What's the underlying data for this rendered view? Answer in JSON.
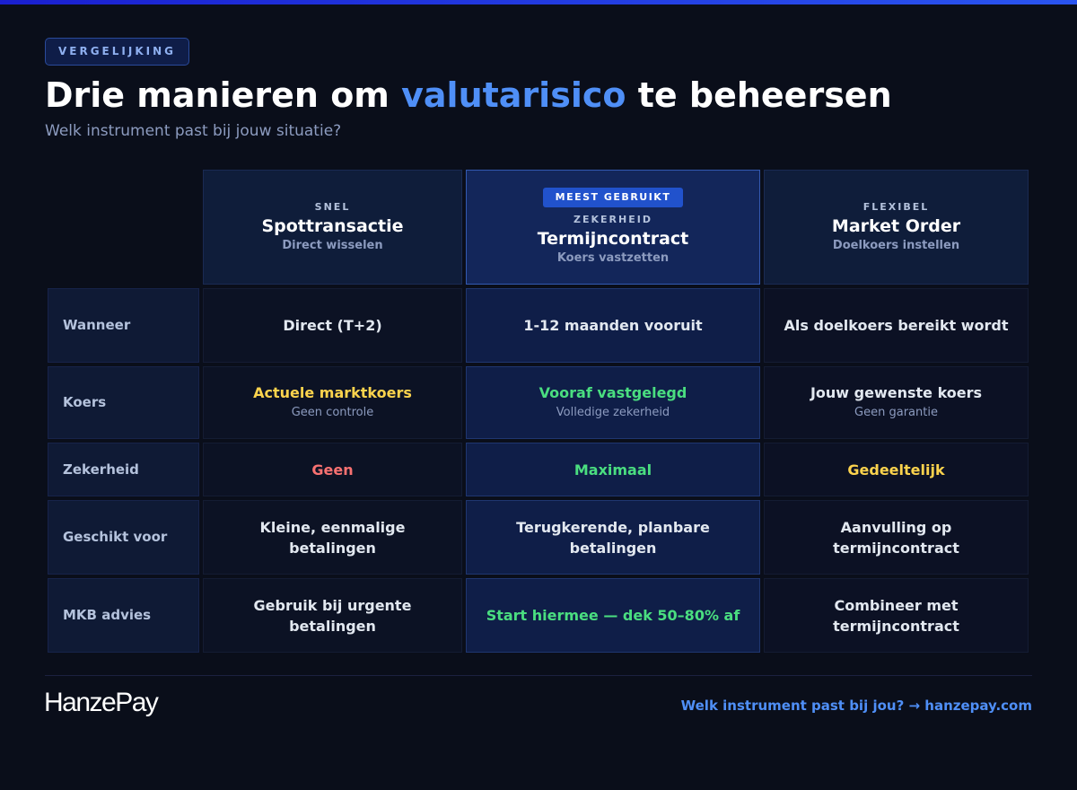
{
  "colors": {
    "accent": "#4f8ff7",
    "yellow": "#fcd34d",
    "green": "#4ade80",
    "red": "#f87171"
  },
  "badge": "VERGELIJKING",
  "title": {
    "before": "Drie manieren om ",
    "highlight": "valutarisico",
    "after": " te beheersen"
  },
  "subtitle": "Welk instrument past bij jouw situatie?",
  "columns": [
    {
      "kicker": "SNEL",
      "name": "Spottransactie",
      "desc": "Direct wisselen"
    },
    {
      "pill": "MEEST GEBRUIKT",
      "kicker": "ZEKERHEID",
      "name": "Termijncontract",
      "desc": "Koers vastzetten"
    },
    {
      "kicker": "FLEXIBEL",
      "name": "Market Order",
      "desc": "Doelkoers instellen"
    }
  ],
  "rows": [
    {
      "label": "Wanneer",
      "cells": [
        {
          "text": "Direct (T+2)"
        },
        {
          "text": "1-12 maanden vooruit"
        },
        {
          "text": "Als doelkoers bereikt wordt"
        }
      ]
    },
    {
      "label": "Koers",
      "cells": [
        {
          "text": "Actuele marktkoers",
          "sub": "Geen controle",
          "color": "#fcd34d"
        },
        {
          "text": "Vooraf vastgelegd",
          "sub": "Volledige zekerheid",
          "color": "#4ade80"
        },
        {
          "text": "Jouw gewenste koers",
          "sub": "Geen garantie"
        }
      ]
    },
    {
      "label": "Zekerheid",
      "cells": [
        {
          "text": "Geen",
          "color": "#f87171"
        },
        {
          "text": "Maximaal",
          "color": "#4ade80"
        },
        {
          "text": "Gedeeltelijk",
          "color": "#fcd34d"
        }
      ]
    },
    {
      "label": "Geschikt voor",
      "cells": [
        {
          "text": "Kleine, eenmalige betalingen"
        },
        {
          "text": "Terugkerende, planbare betalingen"
        },
        {
          "text": "Aanvulling op termijncontract"
        }
      ]
    },
    {
      "label": "MKB advies",
      "cells": [
        {
          "text": "Gebruik bij urgente betalingen"
        },
        {
          "text": "Start hiermee — dek 50–80% af",
          "color": "#4ade80"
        },
        {
          "text": "Combineer met termijncontract"
        }
      ]
    }
  ],
  "footer": {
    "logo": "HanzePay",
    "cta": "Welk instrument past bij jou? → hanzepay.com"
  }
}
